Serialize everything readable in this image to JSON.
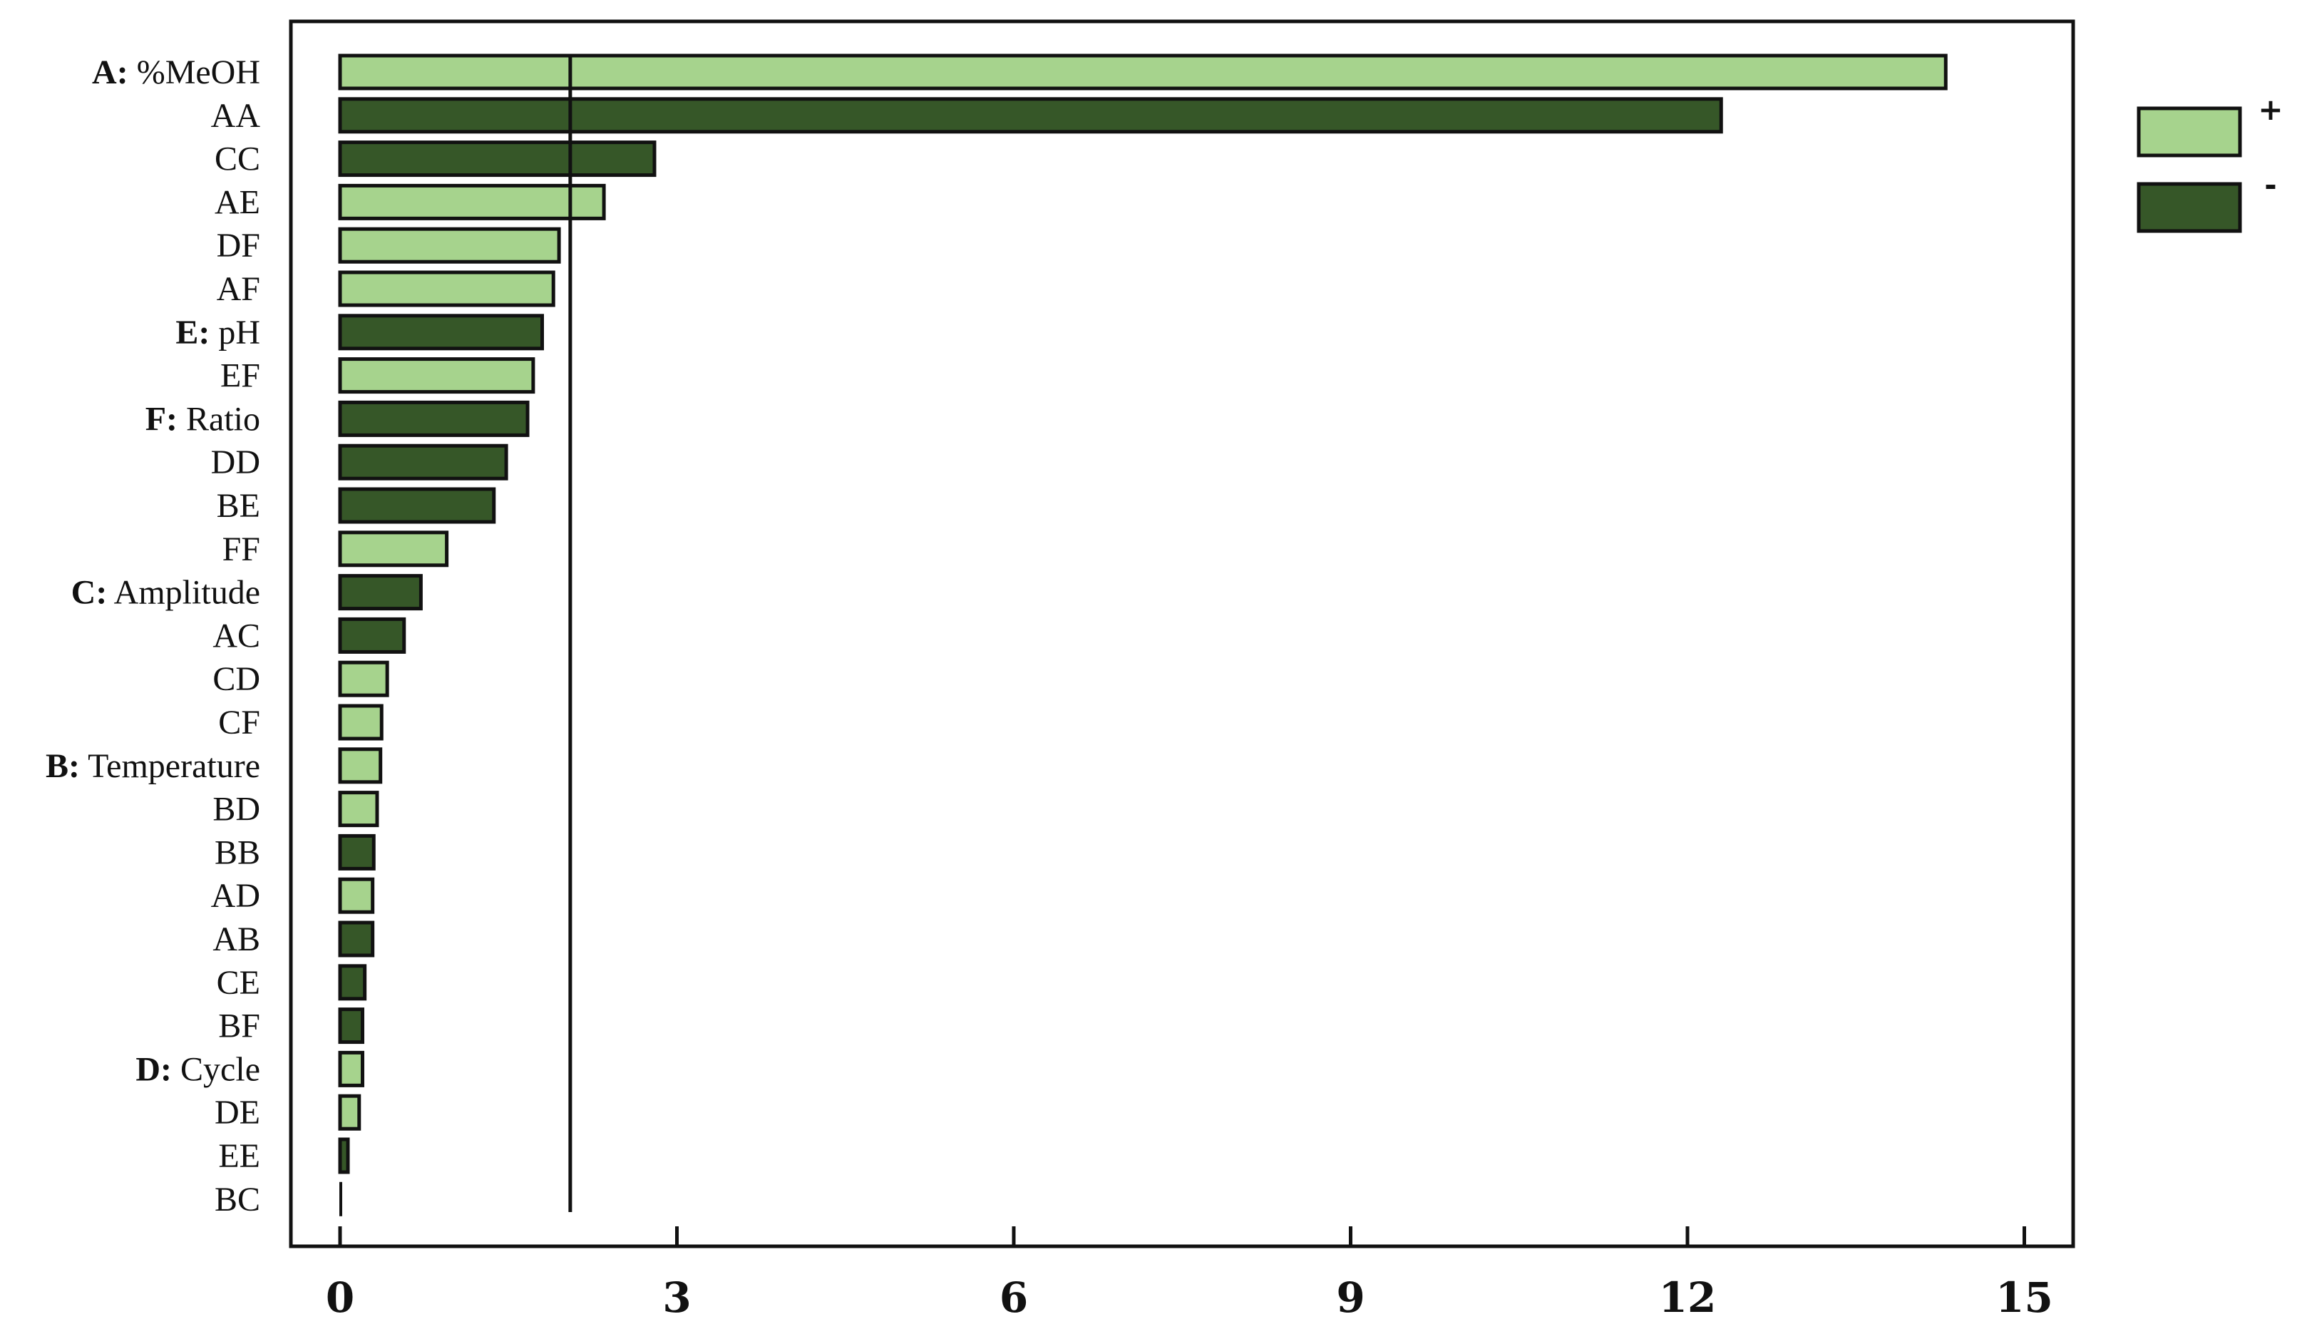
{
  "chart_data": {
    "type": "bar",
    "orientation": "horizontal",
    "xlim": [
      0,
      15.5
    ],
    "xticks": [
      "0",
      "3",
      "6",
      "9",
      "12",
      "15"
    ],
    "reference_line": 2.05,
    "colors": {
      "positive": "#a6d38d",
      "negative": "#365728"
    },
    "legend": [
      {
        "sign": "+",
        "label": "+",
        "color": "#a6d38d"
      },
      {
        "sign": "-",
        "label": "-",
        "color": "#365728"
      }
    ],
    "bars": [
      {
        "key": "A:",
        "name": " %MeOH",
        "value": 14.3,
        "sign": "+"
      },
      {
        "key": "",
        "name": "AA",
        "value": 12.3,
        "sign": "-"
      },
      {
        "key": "",
        "name": "CC",
        "value": 2.8,
        "sign": "-"
      },
      {
        "key": "",
        "name": "AE",
        "value": 2.35,
        "sign": "+"
      },
      {
        "key": "",
        "name": "DF",
        "value": 1.95,
        "sign": "+"
      },
      {
        "key": "",
        "name": "AF",
        "value": 1.9,
        "sign": "+"
      },
      {
        "key": "E:",
        "name": " pH",
        "value": 1.8,
        "sign": "-"
      },
      {
        "key": "",
        "name": "EF",
        "value": 1.72,
        "sign": "+"
      },
      {
        "key": "F:",
        "name": " Ratio",
        "value": 1.67,
        "sign": "-"
      },
      {
        "key": "",
        "name": "DD",
        "value": 1.48,
        "sign": "-"
      },
      {
        "key": "",
        "name": "BE",
        "value": 1.37,
        "sign": "-"
      },
      {
        "key": "",
        "name": "FF",
        "value": 0.95,
        "sign": "+"
      },
      {
        "key": "C:",
        "name": " Amplitude",
        "value": 0.72,
        "sign": "-"
      },
      {
        "key": "",
        "name": "AC",
        "value": 0.57,
        "sign": "-"
      },
      {
        "key": "",
        "name": "CD",
        "value": 0.42,
        "sign": "+"
      },
      {
        "key": "",
        "name": "CF",
        "value": 0.37,
        "sign": "+"
      },
      {
        "key": "B:",
        "name": " Temperature",
        "value": 0.36,
        "sign": "+"
      },
      {
        "key": "",
        "name": "BD",
        "value": 0.33,
        "sign": "+"
      },
      {
        "key": "",
        "name": "BB",
        "value": 0.3,
        "sign": "-"
      },
      {
        "key": "",
        "name": "AD",
        "value": 0.29,
        "sign": "+"
      },
      {
        "key": "",
        "name": "AB",
        "value": 0.29,
        "sign": "-"
      },
      {
        "key": "",
        "name": "CE",
        "value": 0.22,
        "sign": "-"
      },
      {
        "key": "",
        "name": "BF",
        "value": 0.2,
        "sign": "-"
      },
      {
        "key": "D:",
        "name": " Cycle",
        "value": 0.2,
        "sign": "+"
      },
      {
        "key": "",
        "name": "DE",
        "value": 0.17,
        "sign": "+"
      },
      {
        "key": "",
        "name": "EE",
        "value": 0.07,
        "sign": "-"
      },
      {
        "key": "",
        "name": "BC",
        "value": 0.01,
        "sign": "+"
      }
    ]
  }
}
